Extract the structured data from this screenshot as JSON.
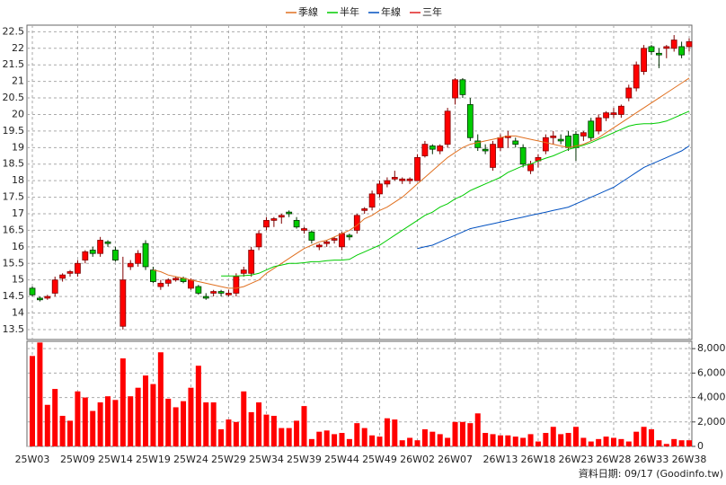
{
  "chart_data": {
    "type": "candlestick",
    "footer": "資料日期: 09/17 (Goodinfo.tw)",
    "categories": [
      "25W03",
      null,
      null,
      null,
      null,
      null,
      "25W09",
      null,
      null,
      null,
      null,
      "25W14",
      null,
      null,
      null,
      null,
      "25W19",
      null,
      null,
      null,
      null,
      "25W24",
      null,
      null,
      null,
      null,
      "25W29",
      null,
      null,
      null,
      null,
      "25W34",
      null,
      null,
      null,
      null,
      "25W39",
      null,
      null,
      null,
      null,
      "25W44",
      null,
      null,
      null,
      null,
      "25W49",
      null,
      null,
      null,
      null,
      "26W02",
      null,
      null,
      null,
      null,
      "26W07",
      null,
      null,
      null,
      null,
      null,
      "26W13",
      null,
      null,
      null,
      null,
      "26W18",
      null,
      null,
      null,
      null,
      "26W23",
      null,
      null,
      null,
      null,
      "26W28",
      null,
      null,
      null,
      null,
      "26W33",
      null,
      null,
      null,
      null,
      "26W38"
    ],
    "open": [
      14.75,
      14.45,
      14.45,
      14.6,
      15.05,
      15.2,
      15.2,
      15.6,
      15.9,
      15.8,
      16.15,
      15.9,
      13.6,
      15.4,
      15.5,
      16.1,
      15.3,
      14.8,
      14.9,
      15.0,
      15.05,
      14.75,
      14.8,
      14.5,
      14.6,
      14.65,
      14.55,
      14.6,
      15.2,
      15.2,
      16.0,
      16.6,
      16.8,
      16.9,
      17.05,
      16.8,
      16.5,
      16.45,
      16.0,
      16.1,
      16.2,
      16.0,
      16.35,
      16.5,
      17.1,
      17.2,
      17.6,
      17.9,
      18.05,
      18.0,
      18.0,
      18.0,
      18.75,
      19.05,
      18.9,
      19.1,
      20.5,
      21.05,
      20.3,
      19.2,
      18.95,
      18.4,
      19.0,
      19.3,
      19.2,
      19.0,
      18.3,
      18.6,
      18.9,
      19.3,
      19.25,
      19.35,
      19.4,
      19.35,
      19.8,
      19.5,
      19.9,
      20.0,
      20.0,
      20.5,
      20.8,
      21.3,
      22.05,
      21.85,
      22.0,
      22.0,
      22.05,
      22.05
    ],
    "high": [
      14.8,
      14.5,
      14.55,
      15.1,
      15.2,
      15.3,
      15.6,
      15.9,
      16.0,
      16.3,
      16.2,
      16.0,
      15.7,
      15.6,
      15.9,
      16.2,
      15.4,
      15.0,
      15.05,
      15.1,
      15.1,
      15.05,
      14.85,
      14.6,
      14.7,
      14.7,
      14.7,
      15.2,
      15.4,
      16.0,
      16.5,
      16.9,
      16.9,
      17.0,
      17.1,
      16.9,
      16.6,
      16.5,
      16.1,
      16.2,
      16.3,
      16.45,
      16.4,
      17.0,
      17.2,
      17.7,
      18.0,
      18.1,
      18.3,
      18.1,
      18.1,
      18.8,
      19.2,
      19.1,
      19.1,
      20.2,
      21.1,
      21.1,
      20.5,
      19.4,
      19.1,
      19.2,
      19.4,
      19.5,
      19.3,
      19.1,
      18.6,
      18.8,
      19.4,
      19.5,
      19.4,
      19.5,
      19.5,
      19.5,
      19.9,
      20.0,
      20.1,
      20.2,
      20.3,
      20.9,
      21.6,
      22.1,
      22.1,
      22.0,
      22.1,
      22.4,
      22.2,
      22.3
    ],
    "low": [
      14.5,
      14.35,
      14.4,
      14.5,
      14.95,
      15.1,
      15.1,
      15.5,
      15.7,
      15.7,
      16.0,
      15.55,
      13.5,
      15.3,
      15.4,
      15.3,
      14.9,
      14.7,
      14.8,
      14.95,
      14.9,
      14.7,
      14.55,
      14.4,
      14.5,
      14.5,
      14.5,
      14.5,
      15.1,
      15.1,
      15.9,
      16.5,
      16.6,
      16.7,
      16.9,
      16.55,
      16.4,
      16.1,
      15.9,
      16.0,
      16.1,
      15.9,
      16.2,
      16.4,
      17.0,
      17.1,
      17.5,
      17.8,
      18.0,
      17.9,
      17.9,
      18.0,
      18.7,
      18.8,
      18.8,
      19.0,
      20.3,
      20.5,
      19.2,
      18.9,
      18.8,
      18.3,
      18.9,
      19.0,
      19.0,
      18.4,
      18.2,
      18.4,
      18.8,
      19.1,
      19.1,
      18.9,
      18.6,
      19.2,
      19.2,
      19.4,
      19.8,
      19.9,
      19.9,
      20.4,
      20.7,
      21.2,
      21.8,
      21.4,
      21.7,
      21.9,
      21.7,
      21.9
    ],
    "close": [
      14.55,
      14.4,
      14.5,
      15.0,
      15.15,
      15.25,
      15.5,
      15.85,
      15.8,
      16.2,
      16.1,
      15.6,
      15.0,
      15.5,
      15.8,
      15.4,
      14.95,
      14.9,
      15.0,
      15.05,
      14.95,
      15.0,
      14.6,
      14.45,
      14.65,
      14.6,
      14.6,
      15.1,
      15.3,
      15.9,
      16.4,
      16.8,
      16.85,
      16.95,
      17.0,
      16.6,
      16.55,
      16.2,
      16.05,
      16.15,
      16.25,
      16.4,
      16.3,
      16.95,
      17.15,
      17.6,
      17.9,
      18.0,
      18.1,
      18.05,
      18.05,
      18.7,
      19.1,
      18.95,
      19.05,
      20.1,
      21.05,
      20.6,
      19.3,
      19.0,
      18.9,
      19.1,
      19.3,
      19.35,
      19.1,
      18.5,
      18.5,
      18.7,
      19.3,
      19.35,
      19.2,
      19.0,
      19.0,
      19.45,
      19.3,
      19.9,
      20.05,
      20.05,
      20.25,
      20.8,
      21.5,
      22.0,
      21.9,
      21.8,
      22.05,
      22.25,
      21.8,
      22.2
    ],
    "up_color": "#ff0000",
    "down_color": "#00cc00",
    "ylim": [
      13.2,
      22.7
    ],
    "yticks": [
      13.5,
      14,
      14.5,
      15,
      15.5,
      16,
      16.5,
      17,
      17.5,
      18,
      18.5,
      19,
      19.5,
      20,
      20.5,
      21,
      21.5,
      22,
      22.5
    ],
    "grid": true,
    "series": [
      {
        "name": "季線",
        "color": "#e07020",
        "values": [
          null,
          null,
          null,
          null,
          null,
          null,
          null,
          null,
          null,
          null,
          null,
          null,
          null,
          null,
          null,
          null,
          15.3,
          15.25,
          15.15,
          15.1,
          15.05,
          15.0,
          14.95,
          14.9,
          14.85,
          14.8,
          14.75,
          14.75,
          14.8,
          14.9,
          15.0,
          15.2,
          15.35,
          15.5,
          15.65,
          15.8,
          15.95,
          16.05,
          16.15,
          16.2,
          16.3,
          16.4,
          16.5,
          16.65,
          16.85,
          16.95,
          17.1,
          17.2,
          17.35,
          17.5,
          17.7,
          17.9,
          18.1,
          18.3,
          18.5,
          18.7,
          18.85,
          19.0,
          19.1,
          19.15,
          19.2,
          19.25,
          19.3,
          19.35,
          19.35,
          19.3,
          19.25,
          19.2,
          19.15,
          19.1,
          19.05,
          19.0,
          19.05,
          19.1,
          19.2,
          19.3,
          19.45,
          19.6,
          19.75,
          19.9,
          20.05,
          20.2,
          20.35,
          20.5,
          20.65,
          20.8,
          20.95,
          21.1
        ]
      },
      {
        "name": "半年",
        "color": "#00cc00",
        "values": [
          null,
          null,
          null,
          null,
          null,
          null,
          null,
          null,
          null,
          null,
          null,
          null,
          null,
          null,
          null,
          null,
          null,
          null,
          null,
          null,
          null,
          null,
          null,
          null,
          null,
          15.12,
          15.12,
          15.12,
          15.13,
          15.15,
          15.2,
          15.3,
          15.4,
          15.45,
          15.5,
          15.5,
          15.52,
          15.55,
          15.55,
          15.58,
          15.6,
          15.6,
          15.62,
          15.75,
          15.85,
          15.95,
          16.05,
          16.2,
          16.35,
          16.5,
          16.65,
          16.8,
          16.95,
          17.05,
          17.2,
          17.3,
          17.45,
          17.55,
          17.7,
          17.8,
          17.9,
          18.0,
          18.1,
          18.25,
          18.35,
          18.45,
          18.5,
          18.6,
          18.68,
          18.75,
          18.85,
          18.95,
          19.0,
          19.07,
          19.15,
          19.25,
          19.35,
          19.45,
          19.55,
          19.65,
          19.7,
          19.72,
          19.72,
          19.75,
          19.8,
          19.9,
          20.0,
          20.1
        ]
      },
      {
        "name": "年線",
        "color": "#0050c0",
        "values": [
          null,
          null,
          null,
          null,
          null,
          null,
          null,
          null,
          null,
          null,
          null,
          null,
          null,
          null,
          null,
          null,
          null,
          null,
          null,
          null,
          null,
          null,
          null,
          null,
          null,
          null,
          null,
          null,
          null,
          null,
          null,
          null,
          null,
          null,
          null,
          null,
          null,
          null,
          null,
          null,
          null,
          null,
          null,
          null,
          null,
          null,
          null,
          null,
          null,
          null,
          null,
          15.95,
          16.0,
          16.05,
          16.15,
          16.25,
          16.35,
          16.45,
          16.55,
          16.6,
          16.65,
          16.7,
          16.75,
          16.8,
          16.85,
          16.9,
          16.95,
          17.0,
          17.05,
          17.1,
          17.15,
          17.2,
          17.3,
          17.4,
          17.5,
          17.6,
          17.7,
          17.8,
          17.95,
          18.1,
          18.25,
          18.4,
          18.5,
          18.6,
          18.7,
          18.8,
          18.9,
          19.05
        ]
      },
      {
        "name": "三年",
        "color": "#e02020",
        "values": [
          null,
          null,
          null,
          null,
          null,
          null,
          null,
          null,
          null,
          null,
          null,
          null,
          null,
          null,
          null,
          null,
          null,
          null,
          null,
          null,
          null,
          null,
          null,
          null,
          null,
          null,
          null,
          null,
          null,
          null,
          null,
          null,
          null,
          null,
          null,
          null,
          null,
          null,
          null,
          null,
          null,
          null,
          null,
          null,
          null,
          null,
          null,
          null,
          null,
          null,
          null,
          null,
          null,
          null,
          null,
          null,
          null,
          null,
          null,
          null,
          null,
          null,
          null,
          null,
          null,
          null,
          null,
          null,
          null,
          null,
          null,
          null,
          null,
          null,
          null,
          null,
          null,
          null,
          null,
          null,
          null,
          null,
          null,
          null,
          null,
          null,
          null,
          null
        ]
      }
    ],
    "volume": {
      "color": "#ff0000",
      "ylim": [
        0,
        8600
      ],
      "yticks": [
        0,
        {
          "value": 2000,
          "label": "2,000"
        },
        {
          "value": 4000,
          "label": "4,000"
        },
        {
          "value": 6000,
          "label": "6,000"
        },
        {
          "value": 8000,
          "label": "8,000"
        }
      ],
      "values": [
        7400,
        8500,
        3400,
        4700,
        2500,
        2100,
        4500,
        4000,
        2900,
        3600,
        4100,
        3800,
        7200,
        4100,
        4800,
        5800,
        5100,
        7700,
        3900,
        3200,
        3700,
        4800,
        6600,
        3600,
        3600,
        1400,
        2200,
        2000,
        4500,
        2800,
        3600,
        2600,
        2500,
        1500,
        1500,
        2100,
        3300,
        600,
        1200,
        1300,
        1000,
        1100,
        600,
        1900,
        1500,
        900,
        800,
        2300,
        2200,
        500,
        700,
        500,
        1400,
        1200,
        1000,
        700,
        2000,
        2000,
        1900,
        2700,
        1100,
        1000,
        900,
        900,
        800,
        700,
        1000,
        400,
        1100,
        1600,
        1000,
        1100,
        1600,
        700,
        400,
        600,
        800,
        700,
        600,
        400,
        1200,
        1600,
        1400,
        500,
        200,
        600,
        500,
        500
      ]
    }
  }
}
